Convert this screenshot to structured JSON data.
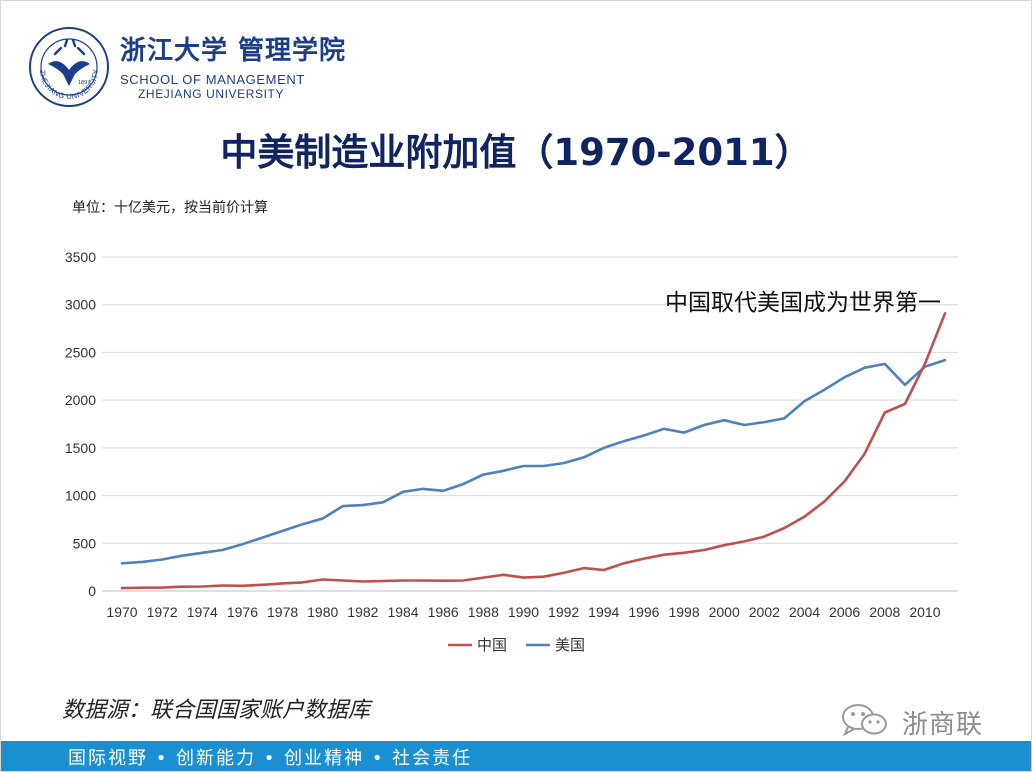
{
  "header": {
    "brand_cn": "浙江大学 管理学院",
    "brand_en_line1": "SCHOOL OF MANAGEMENT",
    "brand_en_line2": "ZHEJIANG UNIVERSITY",
    "seal_text": "ZHEJIANG UNIVERSITY",
    "seal_year": "1897"
  },
  "unit_note": "单位：十亿美元，按当前价计算",
  "source": "数据源：联合国国家账户数据库",
  "footer": "国际视野 • 创新能力 • 创业精神 • 社会责任",
  "watermark": {
    "text": "浙商联",
    "icon": "wechat-icon"
  },
  "colors": {
    "china": "#c0504d",
    "usa": "#4f81bd",
    "title": "#0f2460",
    "brand": "#1a3e8a",
    "footer": "#1a8fd2"
  },
  "chart_data": {
    "type": "line",
    "title": "中美制造业附加值（1970-2011）",
    "xlabel": "",
    "ylabel": "",
    "ylim": [
      0,
      3500
    ],
    "yticks": [
      0,
      500,
      1000,
      1500,
      2000,
      2500,
      3000,
      3500
    ],
    "xtick_labels": [
      "1970",
      "1972",
      "1974",
      "1976",
      "1978",
      "1980",
      "1982",
      "1984",
      "1986",
      "1988",
      "1990",
      "1992",
      "1994",
      "1996",
      "1998",
      "2000",
      "2002",
      "2004",
      "2006",
      "2008",
      "2010"
    ],
    "x": [
      1970,
      1971,
      1972,
      1973,
      1974,
      1975,
      1976,
      1977,
      1978,
      1979,
      1980,
      1981,
      1982,
      1983,
      1984,
      1985,
      1986,
      1987,
      1988,
      1989,
      1990,
      1991,
      1992,
      1993,
      1994,
      1995,
      1996,
      1997,
      1998,
      1999,
      2000,
      2001,
      2002,
      2003,
      2004,
      2005,
      2006,
      2007,
      2008,
      2009,
      2010,
      2011
    ],
    "grid": true,
    "legend": "bottom",
    "annotation": "中国取代美国成为世界第一",
    "series": [
      {
        "name": "中国",
        "color": "#c0504d",
        "values": [
          30,
          35,
          36,
          45,
          47,
          58,
          55,
          65,
          80,
          90,
          120,
          110,
          100,
          105,
          110,
          110,
          108,
          110,
          140,
          170,
          140,
          150,
          190,
          240,
          220,
          290,
          340,
          380,
          400,
          430,
          480,
          520,
          570,
          660,
          780,
          940,
          1150,
          1440,
          1870,
          1960,
          2380,
          2910
        ]
      },
      {
        "name": "美国",
        "color": "#4f81bd",
        "values": [
          290,
          305,
          330,
          370,
          400,
          430,
          490,
          560,
          630,
          700,
          760,
          890,
          900,
          930,
          1040,
          1070,
          1050,
          1120,
          1220,
          1260,
          1310,
          1310,
          1340,
          1400,
          1500,
          1570,
          1630,
          1700,
          1660,
          1740,
          1790,
          1740,
          1770,
          1810,
          1990,
          2110,
          2240,
          2340,
          2380,
          2160,
          2350,
          2420
        ]
      }
    ]
  }
}
